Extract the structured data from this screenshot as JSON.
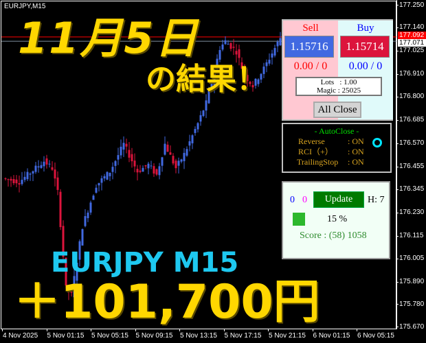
{
  "chart": {
    "symbol_label": "EURJPY,M15",
    "price_axis": [
      "177.250",
      "177.140",
      "177.025",
      "176.910",
      "176.800",
      "176.685",
      "176.570",
      "176.455",
      "176.345",
      "176.230",
      "176.115",
      "176.005",
      "175.890",
      "175.780",
      "175.670"
    ],
    "time_axis": [
      "4 Nov 2025",
      "5 Nov 01:15",
      "5 Nov 05:15",
      "5 Nov 09:15",
      "5 Nov 13:15",
      "5 Nov 17:15",
      "5 Nov 21:15",
      "6 Nov 01:15",
      "6 Nov 05:15"
    ],
    "bid_price": "177.092",
    "ask_price": "177.071",
    "price_path": [
      176.398,
      176.381,
      176.482,
      176.448,
      176.33,
      175.858,
      175.825,
      176.162,
      176.364,
      176.431,
      176.566,
      176.431,
      176.465,
      176.414,
      176.566,
      176.448,
      176.516,
      176.667,
      176.768,
      176.869,
      177.038,
      177.071,
      177.021,
      176.903,
      176.852,
      176.937,
      177.038,
      177.088
    ],
    "colors": {
      "bull": "#4169e1",
      "bear": "#dc143c",
      "bid_line": "#ff0000",
      "ask_line": "#8090a0"
    }
  },
  "overlay": {
    "date_title": "11月5日",
    "result_title": "の結果！",
    "pair_timeframe": "EURJPY M15",
    "profit": "＋101,700円"
  },
  "trade_panel": {
    "sell_label": "Sell",
    "buy_label": "Buy",
    "sell_price": "1.15716",
    "buy_price": "1.15714",
    "sell_pl": "0.00 / 0",
    "buy_pl": "0.00 / 0",
    "lots": "Lots   : 1.00",
    "magic": "Magic : 25025",
    "all_close": "All Close"
  },
  "autoclose_panel": {
    "title": "- AutoClose -",
    "rows": [
      {
        "label": "Reverse",
        "value": ": ON"
      },
      {
        "label": "RCI（+）",
        "value": ": ON"
      },
      {
        "label": "TrailingStop",
        "value": ": ON"
      }
    ]
  },
  "score_panel": {
    "count_blue": "0",
    "count_magenta": "0",
    "update": "Update",
    "h_label": "H: 7",
    "percent": "15 %",
    "score": "Score : (58) 1058"
  }
}
